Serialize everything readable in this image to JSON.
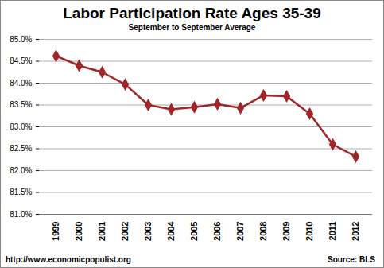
{
  "chart_data": {
    "type": "line",
    "title": "Labor Participation Rate Ages 35-39",
    "subtitle": "September to September Average",
    "categories": [
      "1999",
      "2000",
      "2001",
      "2002",
      "2003",
      "2004",
      "2005",
      "2006",
      "2007",
      "2008",
      "2009",
      "2010",
      "2011",
      "2012"
    ],
    "values": [
      84.62,
      84.4,
      84.25,
      83.97,
      83.5,
      83.4,
      83.45,
      83.52,
      83.43,
      83.72,
      83.7,
      83.3,
      82.6,
      82.32
    ],
    "color": "#a0262a",
    "marker": "diamond",
    "line_style": "solid",
    "ylim": [
      81,
      85
    ],
    "yticks": [
      {
        "value": 81,
        "label": "81.0%"
      },
      {
        "value": 81.5,
        "label": "81.5%"
      },
      {
        "value": 82,
        "label": "82.0%"
      },
      {
        "value": 82.5,
        "label": "82.5%"
      },
      {
        "value": 83,
        "label": "83.0%"
      },
      {
        "value": 83.5,
        "label": "83.5%"
      },
      {
        "value": 84,
        "label": "84.0%"
      },
      {
        "value": 84.5,
        "label": "84.5%"
      },
      {
        "value": 85,
        "label": "85.0%"
      }
    ],
    "grid": true,
    "url": "http://www.economicpopulist.org",
    "source": "Source: BLS"
  }
}
